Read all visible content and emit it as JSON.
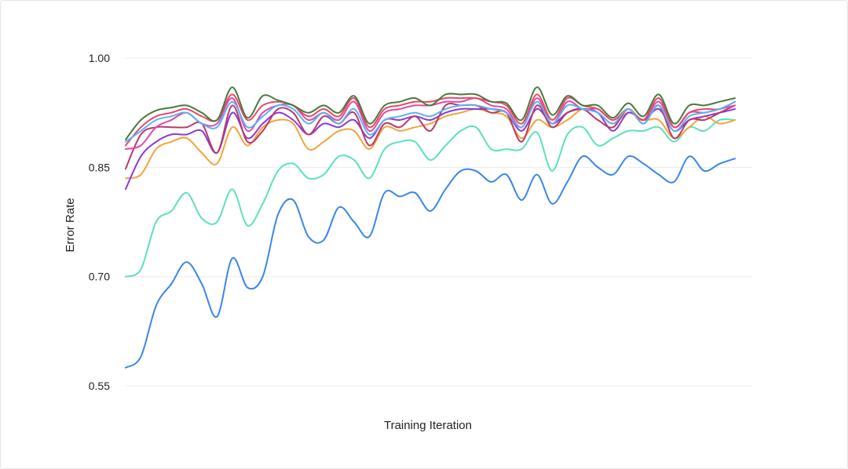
{
  "chart_data": {
    "type": "line",
    "title": "",
    "xlabel": "Training Iteration",
    "ylabel": "Error Rate",
    "ylim": [
      0.55,
      1.0
    ],
    "yticks": [
      "0.55",
      "0.70",
      "0.85",
      "1.00"
    ],
    "ytick_values": [
      0.55,
      0.7,
      0.85,
      1.0
    ],
    "grid": true,
    "legend": "none",
    "x": [
      0,
      1,
      2,
      3,
      4,
      5,
      6,
      7,
      8,
      9,
      10,
      11,
      12,
      13,
      14,
      15,
      16,
      17,
      18,
      19,
      20,
      21,
      22,
      23,
      24,
      25,
      26,
      27,
      28,
      29,
      30,
      31,
      32,
      33,
      34,
      35,
      36,
      37,
      38,
      39,
      40
    ],
    "series": [
      {
        "color": "#3a86e8",
        "values": [
          0.575,
          0.59,
          0.66,
          0.69,
          0.72,
          0.69,
          0.645,
          0.725,
          0.685,
          0.7,
          0.785,
          0.805,
          0.755,
          0.75,
          0.795,
          0.775,
          0.755,
          0.815,
          0.81,
          0.815,
          0.79,
          0.82,
          0.845,
          0.845,
          0.83,
          0.84,
          0.805,
          0.84,
          0.8,
          0.83,
          0.865,
          0.85,
          0.84,
          0.865,
          0.855,
          0.84,
          0.83,
          0.865,
          0.845,
          0.855,
          0.862
        ]
      },
      {
        "color": "#5ce0c0",
        "values": [
          0.7,
          0.71,
          0.775,
          0.79,
          0.815,
          0.78,
          0.775,
          0.82,
          0.77,
          0.8,
          0.845,
          0.855,
          0.835,
          0.84,
          0.865,
          0.86,
          0.835,
          0.875,
          0.885,
          0.885,
          0.86,
          0.88,
          0.9,
          0.905,
          0.875,
          0.875,
          0.875,
          0.898,
          0.845,
          0.895,
          0.905,
          0.88,
          0.89,
          0.9,
          0.9,
          0.905,
          0.885,
          0.905,
          0.9,
          0.915,
          0.915
        ]
      },
      {
        "color": "#f2a43a",
        "values": [
          0.835,
          0.84,
          0.875,
          0.885,
          0.89,
          0.87,
          0.855,
          0.905,
          0.88,
          0.905,
          0.915,
          0.91,
          0.875,
          0.885,
          0.9,
          0.9,
          0.875,
          0.905,
          0.9,
          0.905,
          0.91,
          0.92,
          0.925,
          0.93,
          0.925,
          0.92,
          0.89,
          0.915,
          0.905,
          0.915,
          0.93,
          0.925,
          0.91,
          0.925,
          0.915,
          0.915,
          0.89,
          0.905,
          0.92,
          0.91,
          0.915
        ]
      },
      {
        "color": "#8a3ad8",
        "values": [
          0.82,
          0.865,
          0.885,
          0.895,
          0.895,
          0.9,
          0.87,
          0.925,
          0.89,
          0.91,
          0.925,
          0.915,
          0.895,
          0.91,
          0.905,
          0.915,
          0.89,
          0.915,
          0.915,
          0.92,
          0.915,
          0.925,
          0.93,
          0.93,
          0.93,
          0.925,
          0.9,
          0.93,
          0.91,
          0.925,
          0.93,
          0.925,
          0.9,
          0.925,
          0.915,
          0.93,
          0.9,
          0.915,
          0.92,
          0.925,
          0.93
        ]
      },
      {
        "color": "#b83a6a",
        "values": [
          0.848,
          0.895,
          0.905,
          0.905,
          0.905,
          0.91,
          0.87,
          0.935,
          0.885,
          0.9,
          0.93,
          0.925,
          0.895,
          0.92,
          0.91,
          0.925,
          0.88,
          0.91,
          0.905,
          0.92,
          0.9,
          0.935,
          0.935,
          0.935,
          0.925,
          0.925,
          0.885,
          0.935,
          0.905,
          0.925,
          0.93,
          0.915,
          0.905,
          0.93,
          0.91,
          0.935,
          0.89,
          0.915,
          0.915,
          0.925,
          0.935
        ]
      },
      {
        "color": "#e04aa8",
        "values": [
          0.875,
          0.88,
          0.905,
          0.915,
          0.925,
          0.91,
          0.91,
          0.945,
          0.9,
          0.925,
          0.935,
          0.935,
          0.915,
          0.925,
          0.915,
          0.94,
          0.9,
          0.925,
          0.93,
          0.935,
          0.935,
          0.94,
          0.94,
          0.945,
          0.935,
          0.93,
          0.905,
          0.945,
          0.91,
          0.94,
          0.93,
          0.93,
          0.915,
          0.93,
          0.915,
          0.94,
          0.905,
          0.925,
          0.925,
          0.93,
          0.935
        ]
      },
      {
        "color": "#e8486a",
        "values": [
          0.88,
          0.905,
          0.92,
          0.925,
          0.93,
          0.92,
          0.915,
          0.95,
          0.915,
          0.935,
          0.94,
          0.935,
          0.92,
          0.93,
          0.92,
          0.945,
          0.905,
          0.93,
          0.935,
          0.94,
          0.94,
          0.945,
          0.945,
          0.945,
          0.94,
          0.935,
          0.91,
          0.95,
          0.915,
          0.945,
          0.935,
          0.93,
          0.915,
          0.93,
          0.915,
          0.945,
          0.905,
          0.925,
          0.93,
          0.93,
          0.94
        ]
      },
      {
        "color": "#5ab4f0",
        "values": [
          0.885,
          0.9,
          0.915,
          0.92,
          0.925,
          0.91,
          0.905,
          0.94,
          0.905,
          0.92,
          0.935,
          0.93,
          0.91,
          0.925,
          0.91,
          0.93,
          0.895,
          0.915,
          0.92,
          0.925,
          0.92,
          0.93,
          0.935,
          0.935,
          0.93,
          0.925,
          0.905,
          0.94,
          0.91,
          0.935,
          0.93,
          0.925,
          0.91,
          0.93,
          0.91,
          0.935,
          0.9,
          0.92,
          0.925,
          0.93,
          0.94
        ]
      },
      {
        "color": "#4a7a3a",
        "values": [
          0.888,
          0.915,
          0.928,
          0.932,
          0.935,
          0.925,
          0.915,
          0.96,
          0.918,
          0.948,
          0.942,
          0.935,
          0.925,
          0.935,
          0.925,
          0.948,
          0.91,
          0.935,
          0.94,
          0.945,
          0.935,
          0.95,
          0.95,
          0.95,
          0.94,
          0.938,
          0.915,
          0.96,
          0.922,
          0.948,
          0.935,
          0.935,
          0.918,
          0.938,
          0.92,
          0.95,
          0.91,
          0.935,
          0.935,
          0.94,
          0.945
        ]
      }
    ]
  }
}
